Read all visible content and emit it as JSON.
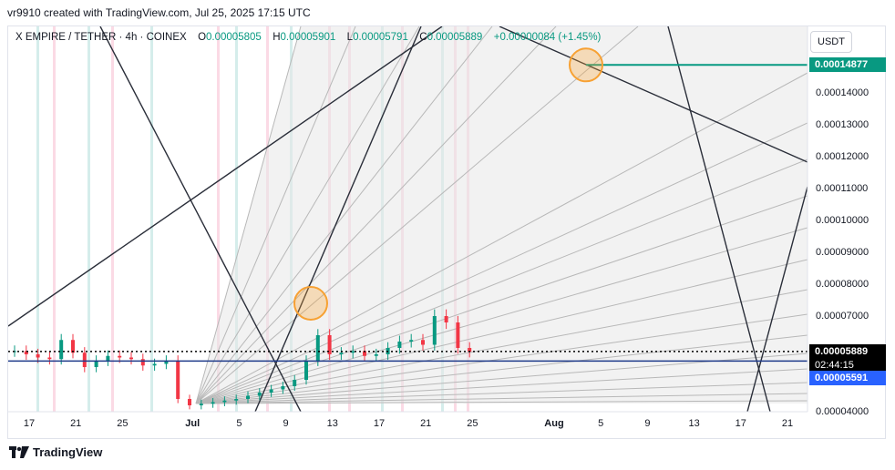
{
  "header": {
    "credit": "vr9910 created with TradingView.com, Jul 25, 2025 17:15 UTC"
  },
  "legend": {
    "symbol": "X EMPIRE / TETHER · 4h · COINEX",
    "o_label": "O",
    "o_value": "0.00005805",
    "h_label": "H",
    "h_value": "0.00005901",
    "l_label": "L",
    "l_value": "0.00005791",
    "c_label": "C",
    "c_value": "0.00005889",
    "change": "+0.00000084 (+1.45%)"
  },
  "currency_button": "USDT",
  "footer": {
    "brand": "TradingView",
    "logo_icon": "tradingview-logo-icon"
  },
  "colors": {
    "up": "#089981",
    "down": "#f23645",
    "target": "#089981",
    "current": "#000000",
    "baseline": "#2962ff",
    "circle": "#f7a133"
  },
  "chart_data": {
    "type": "candlestick",
    "title": "X EMPIRE / TETHER · 4h · COINEX",
    "ohlc_last": {
      "open": 5.805e-05,
      "high": 5.901e-05,
      "low": 5.791e-05,
      "close": 5.889e-05
    },
    "y_axis": {
      "ticks": [
        "0.00014000",
        "0.00013000",
        "0.00012000",
        "0.00011000",
        "0.00010000",
        "0.00009000",
        "0.00008000",
        "0.00007000",
        "0.00004000"
      ],
      "tick_values": [
        0.00014,
        0.00013,
        0.00012,
        0.00011,
        0.0001,
        9e-05,
        8e-05,
        7e-05,
        4e-05
      ],
      "range": [
        3.95e-05,
        0.000158
      ]
    },
    "x_axis": {
      "ticks": [
        "17",
        "21",
        "25",
        "Jul",
        "5",
        "9",
        "13",
        "17",
        "21",
        "25",
        "Aug",
        "5",
        "9",
        "13",
        "17",
        "21"
      ],
      "tick_index": [
        0,
        4,
        8,
        14,
        18,
        22,
        26,
        30,
        34,
        38,
        45,
        49,
        53,
        57,
        61,
        65
      ]
    },
    "price_labels": {
      "target": "0.00014877",
      "target_value": 0.00014877,
      "current": "0.00005889",
      "current_value": 5.889e-05,
      "countdown": "02:44:15",
      "baseline": "0.00005591",
      "baseline_value": 5.591e-05
    },
    "series": [
      {
        "name": "X EMPIRE / TETHER",
        "daily_close": [
          5.9e-05,
          5.8e-05,
          5.7e-05,
          5.65e-05,
          6.25e-05,
          5.85e-05,
          5.4e-05,
          5.6e-05,
          5.75e-05,
          5.7e-05,
          5.65e-05,
          5.45e-05,
          5.5e-05,
          5.6e-05,
          4.4e-05,
          4.2e-05,
          4.25e-05,
          4.3e-05,
          4.35e-05,
          4.4e-05,
          4.5e-05,
          4.6e-05,
          4.7e-05,
          4.8e-05,
          5e-05,
          5.6e-05,
          6.4e-05,
          5.8e-05,
          5.85e-05,
          5.9e-05,
          5.75e-05,
          5.8e-05,
          6e-05,
          6.2e-05,
          6.25e-05,
          6.1e-05,
          7e-05,
          6.8e-05,
          6e-05,
          5.88e-05
        ]
      }
    ]
  }
}
